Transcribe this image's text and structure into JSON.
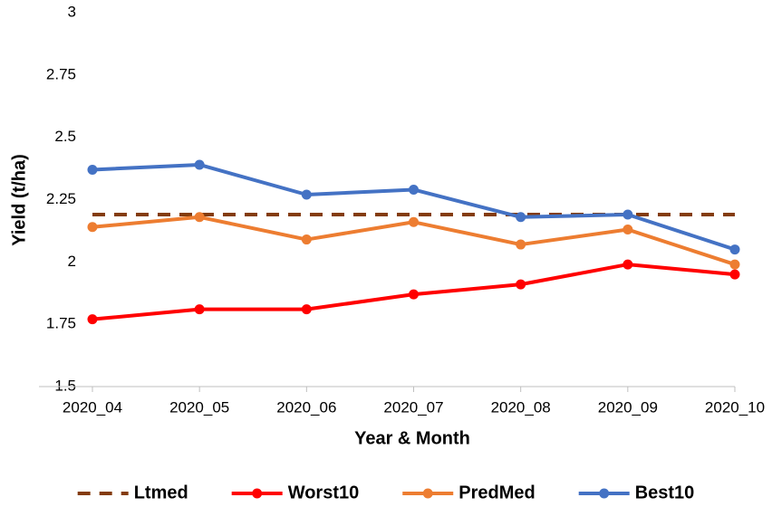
{
  "chart_data": {
    "type": "line",
    "x_label": "Year & Month",
    "y_label": "Yield (t/ha)",
    "categories": [
      "2020_04",
      "2020_05",
      "2020_06",
      "2020_07",
      "2020_08",
      "2020_09",
      "2020_10"
    ],
    "series": [
      {
        "name": "Ltmed",
        "color": "#843c0c",
        "dashed": true,
        "markers": false,
        "values": [
          2.19,
          2.19,
          2.19,
          2.19,
          2.19,
          2.19,
          2.19
        ]
      },
      {
        "name": "Worst10",
        "color": "#ff0000",
        "dashed": false,
        "markers": true,
        "values": [
          1.77,
          1.81,
          1.81,
          1.87,
          1.91,
          1.99,
          1.95
        ]
      },
      {
        "name": "PredMed",
        "color": "#ed7d31",
        "dashed": false,
        "markers": true,
        "values": [
          2.14,
          2.18,
          2.09,
          2.16,
          2.07,
          2.13,
          1.99
        ]
      },
      {
        "name": "Best10",
        "color": "#4472c4",
        "dashed": false,
        "markers": true,
        "values": [
          2.37,
          2.39,
          2.27,
          2.29,
          2.18,
          2.19,
          2.05
        ]
      }
    ],
    "ylim": [
      1.5,
      3
    ],
    "yticks": [
      1.5,
      1.75,
      2,
      2.25,
      2.5,
      2.75,
      3
    ],
    "grid": false,
    "legend": "bottom"
  }
}
